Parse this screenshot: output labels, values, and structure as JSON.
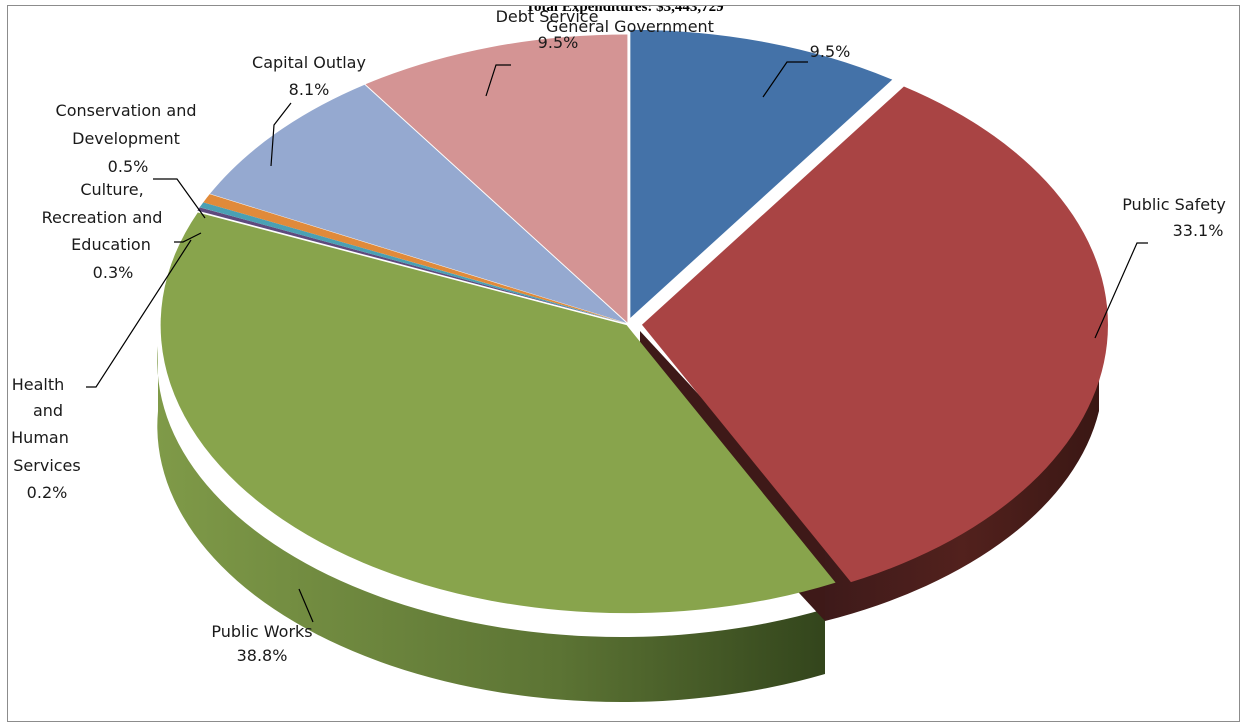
{
  "chart_data": {
    "type": "pie",
    "title": "Total Expenditures: $3,443,729",
    "slices": [
      {
        "label": "General Government",
        "percent_label": "9.5%",
        "value": 9.5,
        "color": "#4472a8"
      },
      {
        "label": "Public Safety",
        "percent_label": "33.1%",
        "value": 33.1,
        "color": "#a94444"
      },
      {
        "label": "Public Works",
        "percent_label": "38.8%",
        "value": 38.8,
        "color": "#88a44c"
      },
      {
        "label": "Health and Human Services",
        "percent_label": "0.2%",
        "value": 0.2,
        "color": "#5e4a7e"
      },
      {
        "label": "Culture, Recreation and Education",
        "percent_label": "0.3%",
        "value": 0.3,
        "color": "#4aa0b4"
      },
      {
        "label": "Conservation and Development",
        "percent_label": "0.5%",
        "value": 0.5,
        "color": "#e08a3a"
      },
      {
        "label": "Capital Outlay",
        "percent_label": "8.1%",
        "value": 8.1,
        "color": "#95a9d0"
      },
      {
        "label": "Debt Service",
        "percent_label": "9.5%",
        "value": 9.5,
        "color": "#d49494"
      }
    ],
    "legend": "none"
  }
}
